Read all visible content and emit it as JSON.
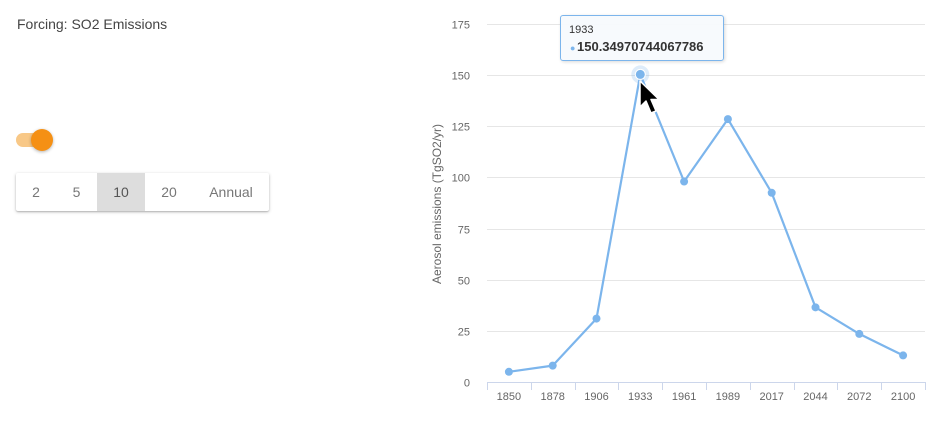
{
  "forcing": {
    "label": "Forcing: SO2 Emissions"
  },
  "toggle": {
    "on": true,
    "track_color": "#f8c887",
    "thumb_color": "#f59014"
  },
  "interval_options": [
    {
      "label": "2",
      "active": false
    },
    {
      "label": "5",
      "active": false
    },
    {
      "label": "10",
      "active": true
    },
    {
      "label": "20",
      "active": false
    },
    {
      "label": "Annual",
      "active": false
    }
  ],
  "tooltip": {
    "x_label": "1933",
    "value": "150.34970744067786",
    "bullet": "●"
  },
  "colors": {
    "series": "#7cb5ec",
    "grid": "#e6e6e6",
    "axis_text": "#666666"
  },
  "chart_data": {
    "type": "line",
    "title": "",
    "xlabel": "",
    "ylabel": "Aerosol emissions (TgSO2/yr)",
    "categories": [
      "1850",
      "1878",
      "1906",
      "1933",
      "1961",
      "1989",
      "2017",
      "2044",
      "2072",
      "2100"
    ],
    "values": [
      5,
      8,
      31,
      150.35,
      98,
      128.5,
      92.5,
      36.5,
      23.5,
      13
    ],
    "ylim": [
      0,
      175
    ],
    "yticks": [
      0,
      25,
      50,
      75,
      100,
      125,
      150,
      175
    ],
    "grid": true,
    "highlight_index": 3
  }
}
